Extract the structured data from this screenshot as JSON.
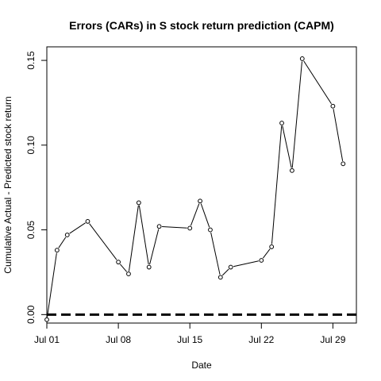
{
  "chart_data": {
    "type": "line",
    "title": "Errors (CARs) in S stock return prediction (CAPM)",
    "xlabel": "Date",
    "ylabel": "Cumulative Actual - Predicted stock return",
    "x_ticks": [
      "Jul 01",
      "Jul 08",
      "Jul 15",
      "Jul 22",
      "Jul 29"
    ],
    "y_ticks": [
      "0.00",
      "0.05",
      "0.10",
      "0.15"
    ],
    "ylim": [
      -0.005,
      0.158
    ],
    "xlim_days": [
      0,
      30.3
    ],
    "grid": false,
    "colors": {
      "line": "#000000",
      "reference_line": "#000000",
      "background": "#ffffff"
    },
    "reference_line": {
      "y": 0,
      "style": "dashed"
    },
    "series": [
      {
        "x": [
          "Jul 01",
          "Jul 02",
          "Jul 03",
          "Jul 05",
          "Jul 08",
          "Jul 09",
          "Jul 10",
          "Jul 11",
          "Jul 12",
          "Jul 15",
          "Jul 16",
          "Jul 17",
          "Jul 18",
          "Jul 19",
          "Jul 22",
          "Jul 23",
          "Jul 24",
          "Jul 25",
          "Jul 26",
          "Jul 29",
          "Jul 30"
        ],
        "day_index": [
          0,
          1,
          2,
          4,
          7,
          8,
          9,
          10,
          11,
          14,
          15,
          16,
          17,
          18,
          21,
          22,
          23,
          24,
          25,
          28,
          29
        ],
        "values": [
          -0.003,
          0.038,
          0.047,
          0.055,
          0.031,
          0.024,
          0.066,
          0.028,
          0.052,
          0.051,
          0.067,
          0.05,
          0.022,
          0.028,
          0.032,
          0.04,
          0.113,
          0.085,
          0.151,
          0.123,
          0.089
        ]
      }
    ]
  }
}
